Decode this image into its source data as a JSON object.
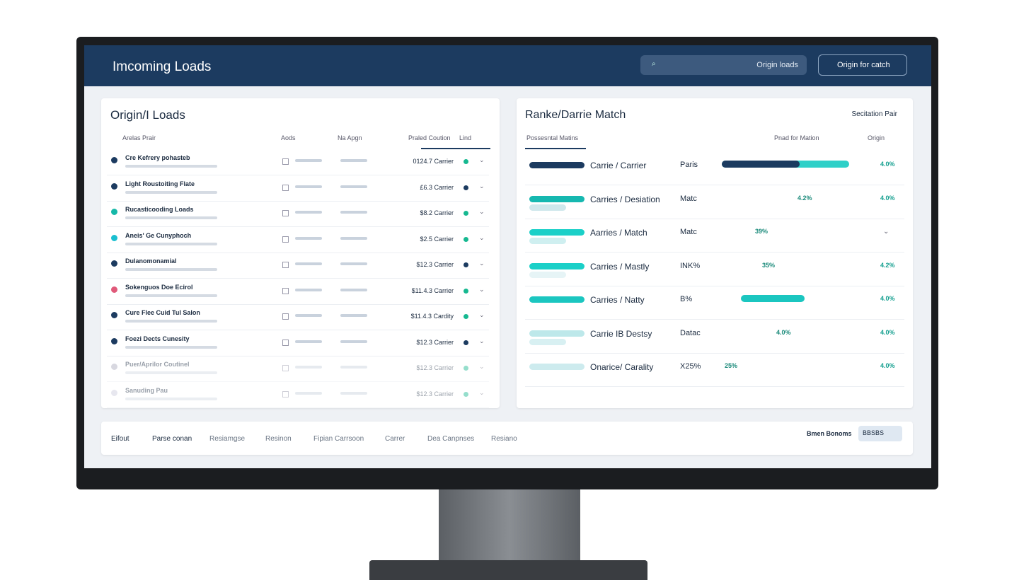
{
  "header": {
    "title": "Imcoming Loads",
    "search": "Origin loads",
    "dropdown": "Origin for catch"
  },
  "left_panel": {
    "title": "Origin/I Loads",
    "columns": [
      "Arelas Prair",
      "Aods",
      "Na Apgn",
      "Praled Coution",
      "Lind"
    ],
    "rows": [
      {
        "name": "Cre Kefrery pohasteb",
        "price": "0124.7 Carrier"
      },
      {
        "name": "Light Roustoiting Flate",
        "price": "£6.3 Carrier"
      },
      {
        "name": "Rucasticooding Loads",
        "price": "$8.2 Carrier"
      },
      {
        "name": "Aneis' Ge Cunyphoch",
        "price": "$2.5 Carrier"
      },
      {
        "name": "Dulanomonamial",
        "price": "$12.3 Carrier"
      },
      {
        "name": "Sokenguos Doe Ecirol",
        "price": "$11.4.3 Carrier"
      },
      {
        "name": "Cure Flee Cuid Tul Salon",
        "price": "$11.4.3 Cardity"
      },
      {
        "name": "Foezi Dects Cunesity",
        "price": "$12.3 Carrier"
      },
      {
        "name": "Puer/Aprilor Coutinel",
        "price": "$12.3 Carrier"
      },
      {
        "name": "Sanuding Pau",
        "price": "$12.3 Carrier"
      }
    ]
  },
  "right_panel": {
    "title": "Ranke/Darrie Match",
    "dropdown": "Secitation Pair",
    "tab": "Possesntal Matins",
    "header_filter": "Pnad for Mation",
    "header_origin": "Origin",
    "rows": [
      {
        "label": "Carrie / Carrier",
        "value": "Paris",
        "pct": "4.0%"
      },
      {
        "label": "Carries / Desiation",
        "value": "Matc",
        "mid": "4.2%",
        "pct": "4.0%"
      },
      {
        "label": "Aarries / Match",
        "value": "Matc",
        "mid": "39%"
      },
      {
        "label": "Carries / Mastly",
        "value": "INK%",
        "mid": "35%",
        "pct": "4.2%"
      },
      {
        "label": "Carries / Natty",
        "value": "B%",
        "pct": "4.0%"
      },
      {
        "label": "Carrie IB Destsy",
        "value": "Datac",
        "mid": "4.0%",
        "pct": "4.0%"
      },
      {
        "label": "Onarice/ Carality",
        "value": "X25%",
        "mid": "25%",
        "pct": "4.0%"
      }
    ]
  },
  "footer": {
    "tabs": [
      "Eifout",
      "Parse conan",
      "Resiamgse",
      "Resinon",
      "Fipian Carrsoon",
      "Carrer",
      "Dea Canpnses",
      "Resiano"
    ],
    "right_label": "Bmen Bonoms",
    "right_button": "BBSBS"
  }
}
